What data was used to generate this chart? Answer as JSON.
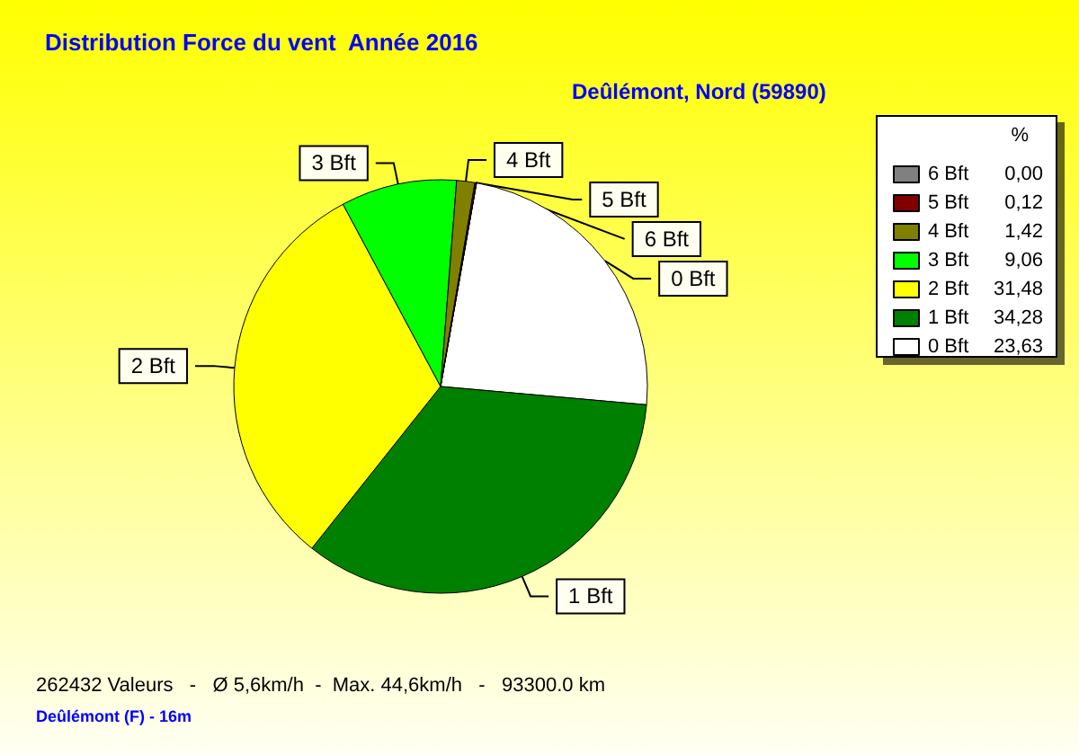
{
  "chart_data": {
    "type": "pie",
    "title": "Distribution Force du vent  Année 2016",
    "subtitle": "Deûlémont, Nord (59890)",
    "legend_title": "%",
    "categories": [
      "0 Bft",
      "1 Bft",
      "2 Bft",
      "3 Bft",
      "4 Bft",
      "5 Bft",
      "6 Bft"
    ],
    "values": [
      23.63,
      34.28,
      31.48,
      9.06,
      1.42,
      0.12,
      0.0
    ],
    "colors": [
      "#ffffff",
      "#008000",
      "#ffff00",
      "#00ff00",
      "#808000",
      "#800000",
      "#808080"
    ],
    "value_labels": [
      "23,63",
      "34,28",
      "31,48",
      "9,06",
      "1,42",
      "0,12",
      "0,00"
    ],
    "legend": "top right",
    "annotations": [
      "262432 Valeurs   -   Ø 5,6km/h  -  Max. 44,6km/h   -   93300.0 km",
      "Deûlémont (F) - 16m"
    ]
  }
}
